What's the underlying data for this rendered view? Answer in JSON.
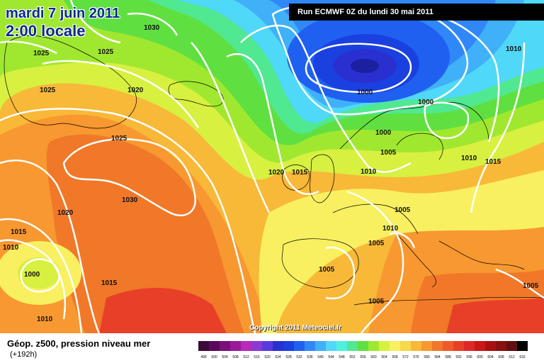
{
  "title": {
    "date": "mardi 7 juin 2011",
    "time": "2:00 locale"
  },
  "run_info": "Run ECMWF 0Z du lundi 30 mai 2011",
  "copyright": "Copyright 2011 Meteociel.fr",
  "legend": {
    "title": "Géop. z500, pression niveau mer",
    "subtitle": "(+192h)",
    "scale": [
      {
        "value": "496",
        "color": "#3a0a3a"
      },
      {
        "value": "500",
        "color": "#5a0a5a"
      },
      {
        "value": "504",
        "color": "#7a107a"
      },
      {
        "value": "508",
        "color": "#9a1a9a"
      },
      {
        "value": "512",
        "color": "#b82ab8"
      },
      {
        "value": "516",
        "color": "#8a3ad0"
      },
      {
        "value": "520",
        "color": "#5a3ae0"
      },
      {
        "value": "524",
        "color": "#2a30d0"
      },
      {
        "value": "528",
        "color": "#1a40e0"
      },
      {
        "value": "532",
        "color": "#2060f0"
      },
      {
        "value": "536",
        "color": "#3088f8"
      },
      {
        "value": "540",
        "color": "#40b0f8"
      },
      {
        "value": "544",
        "color": "#50d8f8"
      },
      {
        "value": "548",
        "color": "#50f0e0"
      },
      {
        "value": "552",
        "color": "#50e890"
      },
      {
        "value": "556",
        "color": "#60e040"
      },
      {
        "value": "560",
        "color": "#a0e830"
      },
      {
        "value": "564",
        "color": "#d8f040"
      },
      {
        "value": "568",
        "color": "#f8f060"
      },
      {
        "value": "572",
        "color": "#f8d848"
      },
      {
        "value": "576",
        "color": "#f8b838"
      },
      {
        "value": "580",
        "color": "#f89830"
      },
      {
        "value": "584",
        "color": "#f07828"
      },
      {
        "value": "588",
        "color": "#f05a28"
      },
      {
        "value": "592",
        "color": "#e84028"
      },
      {
        "value": "596",
        "color": "#e02828"
      },
      {
        "value": "600",
        "color": "#c81818"
      },
      {
        "value": "604",
        "color": "#a81010"
      },
      {
        "value": "608",
        "color": "#881010"
      },
      {
        "value": "612",
        "color": "#601010"
      },
      {
        "value": "616",
        "color": "#000000"
      }
    ]
  },
  "isobar_labels": [
    {
      "text": "1030",
      "id": "1030-greenland"
    },
    {
      "text": "1025",
      "id": "1025-a"
    },
    {
      "text": "1025",
      "id": "1025-b"
    },
    {
      "text": "1025",
      "id": "1025-c"
    },
    {
      "text": "1020",
      "id": "1020-a"
    },
    {
      "text": "1025",
      "id": "1025-d"
    },
    {
      "text": "1030",
      "id": "1030-atlantic"
    },
    {
      "text": "1020",
      "id": "1020-b"
    },
    {
      "text": "1015",
      "id": "1015-a"
    },
    {
      "text": "1010",
      "id": "1010-a"
    },
    {
      "text": "1000",
      "id": "1000-low"
    },
    {
      "text": "1015",
      "id": "1015-b"
    },
    {
      "text": "1010",
      "id": "1010-b"
    },
    {
      "text": "1020",
      "id": "1020-c"
    },
    {
      "text": "1015",
      "id": "1015-c"
    },
    {
      "text": "1000",
      "id": "1000-north"
    },
    {
      "text": "1000",
      "id": "1000-b"
    },
    {
      "text": "1000",
      "id": "1000-c"
    },
    {
      "text": "1005",
      "id": "1005-a"
    },
    {
      "text": "1010",
      "id": "1010-c"
    },
    {
      "text": "1010",
      "id": "1010-d"
    },
    {
      "text": "1015",
      "id": "1015-d"
    },
    {
      "text": "1010",
      "id": "1010-e"
    },
    {
      "text": "1005",
      "id": "1005-b"
    },
    {
      "text": "1010",
      "id": "1010-f"
    },
    {
      "text": "1005",
      "id": "1005-c"
    },
    {
      "text": "1005",
      "id": "1005-d"
    },
    {
      "text": "1005",
      "id": "1005-e"
    },
    {
      "text": "1005",
      "id": "1005-f"
    }
  ]
}
